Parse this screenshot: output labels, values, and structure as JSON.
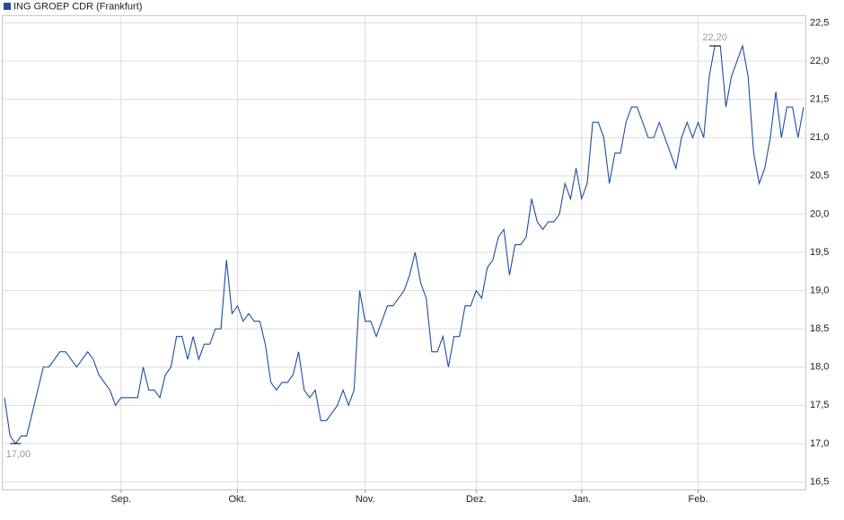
{
  "chart_data": {
    "type": "line",
    "categories": [
      null,
      null,
      null,
      null,
      null,
      null,
      null,
      null,
      null,
      null,
      null,
      null,
      null,
      null,
      null,
      null,
      null,
      null,
      null,
      null,
      null,
      "Sep.",
      null,
      null,
      null,
      null,
      null,
      null,
      null,
      null,
      null,
      null,
      null,
      null,
      null,
      null,
      null,
      null,
      null,
      null,
      null,
      null,
      "Okt.",
      null,
      null,
      null,
      null,
      null,
      null,
      null,
      null,
      null,
      null,
      null,
      null,
      null,
      null,
      null,
      null,
      null,
      null,
      null,
      null,
      null,
      null,
      "Nov.",
      null,
      null,
      null,
      null,
      null,
      null,
      null,
      null,
      null,
      null,
      null,
      null,
      null,
      null,
      null,
      null,
      null,
      null,
      null,
      "Dez.",
      null,
      null,
      null,
      null,
      null,
      null,
      null,
      null,
      null,
      null,
      null,
      null,
      null,
      null,
      null,
      null,
      null,
      null,
      "Jan.",
      null,
      null,
      null,
      null,
      null,
      null,
      null,
      null,
      null,
      null,
      null,
      null,
      null,
      null,
      null,
      null,
      null,
      null,
      null,
      null,
      "Feb.",
      null,
      null,
      null,
      null,
      null,
      null,
      null,
      null,
      null,
      null,
      null,
      null,
      null,
      null,
      null,
      null,
      null,
      null,
      null
    ],
    "series": [
      {
        "name": "ING GROEP CDR (Frankfurt)",
        "color": "#1f4e9c",
        "values": [
          17.6,
          17.1,
          17.0,
          17.1,
          17.1,
          17.4,
          17.7,
          18.0,
          18.0,
          18.1,
          18.2,
          18.2,
          18.1,
          18.0,
          18.1,
          18.2,
          18.1,
          17.9,
          17.8,
          17.7,
          17.5,
          17.6,
          17.6,
          17.6,
          17.6,
          18.0,
          17.7,
          17.7,
          17.6,
          17.9,
          18.0,
          18.4,
          18.4,
          18.1,
          18.4,
          18.1,
          18.3,
          18.3,
          18.5,
          18.5,
          19.4,
          18.7,
          18.8,
          18.6,
          18.7,
          18.6,
          18.6,
          18.3,
          17.8,
          17.7,
          17.8,
          17.8,
          17.9,
          18.2,
          17.7,
          17.6,
          17.7,
          17.3,
          17.3,
          17.4,
          17.5,
          17.7,
          17.5,
          17.7,
          19.0,
          18.6,
          18.6,
          18.4,
          18.6,
          18.8,
          18.8,
          18.9,
          19.0,
          19.2,
          19.5,
          19.1,
          18.9,
          18.2,
          18.2,
          18.4,
          18.0,
          18.4,
          18.4,
          18.8,
          18.8,
          19.0,
          18.9,
          19.3,
          19.4,
          19.7,
          19.8,
          19.2,
          19.6,
          19.6,
          19.7,
          20.2,
          19.9,
          19.8,
          19.9,
          19.9,
          20.0,
          20.4,
          20.2,
          20.6,
          20.2,
          20.4,
          21.2,
          21.2,
          21.0,
          20.4,
          20.8,
          20.8,
          21.2,
          21.4,
          21.4,
          21.2,
          21.0,
          21.0,
          21.2,
          21.0,
          20.8,
          20.6,
          21.0,
          21.2,
          21.0,
          21.2,
          21.0,
          21.8,
          22.2,
          22.2,
          21.4,
          21.8,
          22.0,
          22.2,
          21.8,
          20.8,
          20.4,
          20.6,
          21.0,
          21.6,
          21.0,
          21.4,
          21.4,
          21.0,
          21.4
        ]
      }
    ],
    "max_label": "22,20",
    "min_label": "17,00",
    "ylim": [
      16.4,
      22.6
    ],
    "yticks": [
      {
        "value": 16.5,
        "label": "16,5"
      },
      {
        "value": 17,
        "label": "17,0"
      },
      {
        "value": 17.5,
        "label": "17,5"
      },
      {
        "value": 18,
        "label": "18,0"
      },
      {
        "value": 18.5,
        "label": "18,5"
      },
      {
        "value": 19,
        "label": "19,0"
      },
      {
        "value": 19.5,
        "label": "19,5"
      },
      {
        "value": 20,
        "label": "20,0"
      },
      {
        "value": 20.5,
        "label": "20,5"
      },
      {
        "value": 21,
        "label": "21,0"
      },
      {
        "value": 21.5,
        "label": "21,5"
      },
      {
        "value": 22,
        "label": "22,0"
      },
      {
        "value": 22.5,
        "label": "22,5"
      }
    ],
    "grid": true
  }
}
